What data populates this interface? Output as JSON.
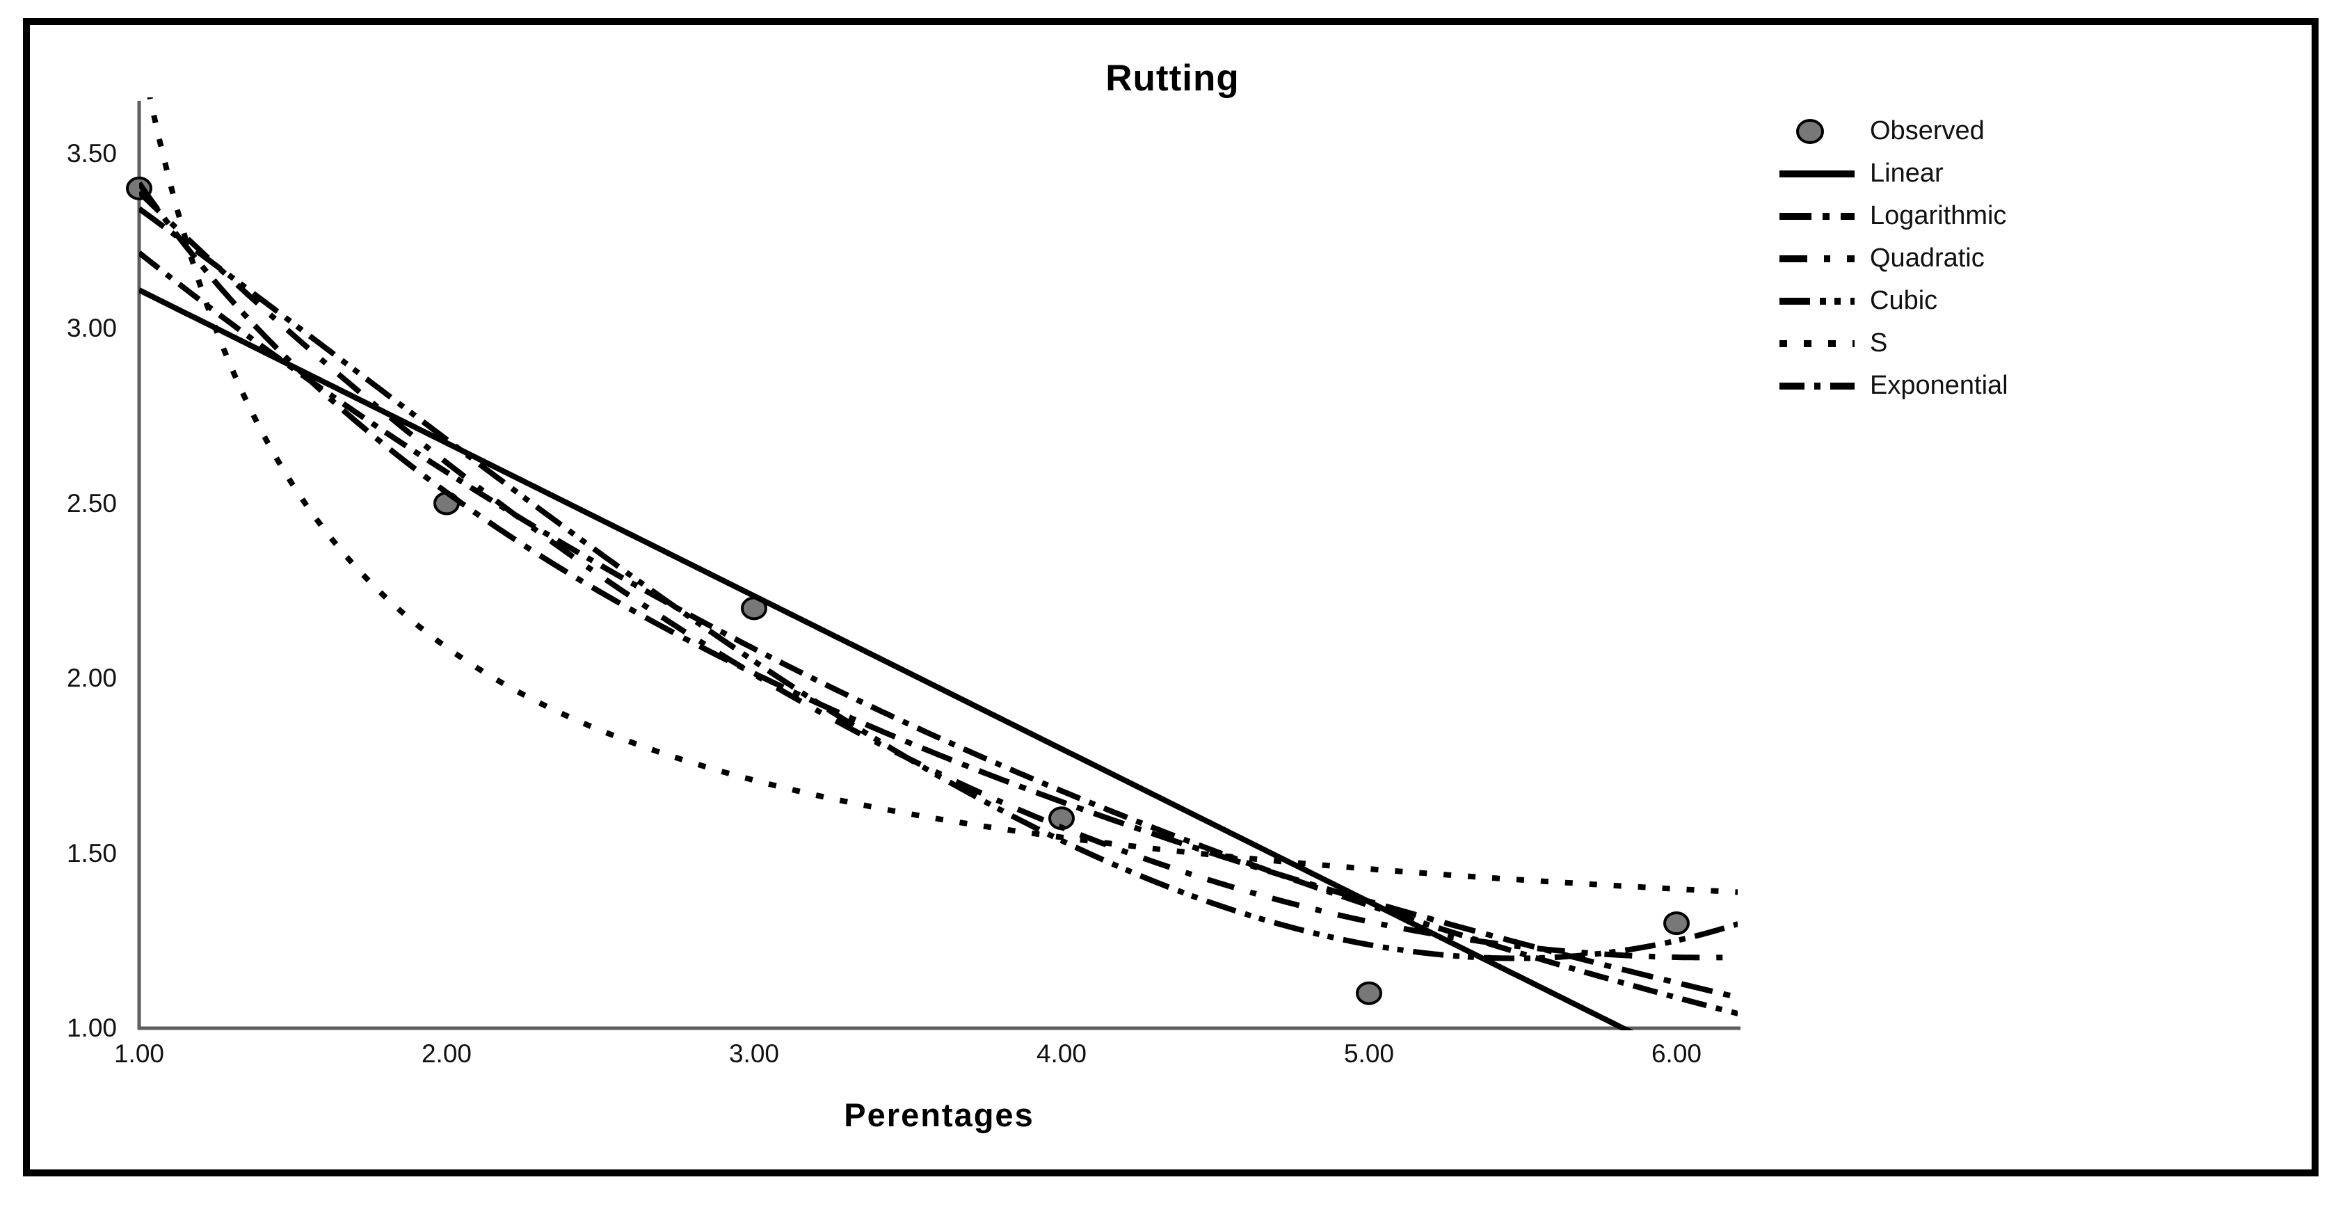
{
  "chart_data": {
    "type": "line",
    "title": "Rutting",
    "xlabel": "Perentages",
    "ylabel": "",
    "xlim": [
      1.0,
      6.2
    ],
    "ylim": [
      1.0,
      3.65
    ],
    "grid": false,
    "legend_position": "top-right",
    "x_ticks": [
      "1.00",
      "2.00",
      "3.00",
      "4.00",
      "5.00",
      "6.00"
    ],
    "x_tick_values": [
      1,
      2,
      3,
      4,
      5,
      6
    ],
    "y_ticks": [
      "1.00",
      "1.50",
      "2.00",
      "2.50",
      "3.00",
      "3.50"
    ],
    "y_tick_values": [
      1.0,
      1.5,
      2.0,
      2.5,
      3.0,
      3.5
    ],
    "observed": {
      "label": "Observed",
      "x": [
        1,
        2,
        3,
        4,
        5,
        6
      ],
      "y": [
        3.4,
        2.5,
        2.2,
        1.6,
        1.1,
        1.3
      ],
      "marker_fill": "#787878",
      "marker_edge": "#000000"
    },
    "series": [
      {
        "name": "Linear",
        "model": "linear",
        "coefficients": {
          "a": 3.5467,
          "b": -0.4371
        },
        "dash": ""
      },
      {
        "name": "Logarithmic",
        "model": "logarithmic",
        "coefficients": {
          "a": 3.4151,
          "b": -1.2753
        },
        "dash": "46 16 10 16"
      },
      {
        "name": "Quadratic",
        "model": "quadratic",
        "coefficients": {
          "a": 4.33,
          "b": -1.0246,
          "c": 0.0839
        },
        "dash": "40 24 9 24"
      },
      {
        "name": "Cubic",
        "model": "cubic",
        "coefficients": {
          "a": 3.9333,
          "b": -0.5257,
          "c": -0.08135,
          "d": 0.01574
        },
        "dash": "44 14 9 12 9 14"
      },
      {
        "name": "S",
        "model": "s",
        "coefficients": {
          "a": 0.1343,
          "b": 1.2042
        },
        "dash": "11 24"
      },
      {
        "name": "Exponential",
        "model": "exponential",
        "coefficients": {
          "a": 3.9945,
          "b": -0.2168
        },
        "dash": "36 14 9 14"
      }
    ],
    "legend": {
      "entries": [
        {
          "label": "Observed",
          "swatch": "circle",
          "dash": ""
        },
        {
          "label": "Linear",
          "swatch": "line",
          "dash": ""
        },
        {
          "label": "Logarithmic",
          "swatch": "line",
          "dash": "46 16 10 16"
        },
        {
          "label": "Quadratic",
          "swatch": "line",
          "dash": "40 24 9 24"
        },
        {
          "label": "Cubic",
          "swatch": "line",
          "dash": "44 14 9 12 9 14"
        },
        {
          "label": "S",
          "swatch": "line",
          "dash": "11 24"
        },
        {
          "label": "Exponential",
          "swatch": "line",
          "dash": "36 14 9 14"
        }
      ]
    },
    "line_color": "#000000",
    "axis_color": "#5e5e5e",
    "frame_color": "#000000"
  }
}
